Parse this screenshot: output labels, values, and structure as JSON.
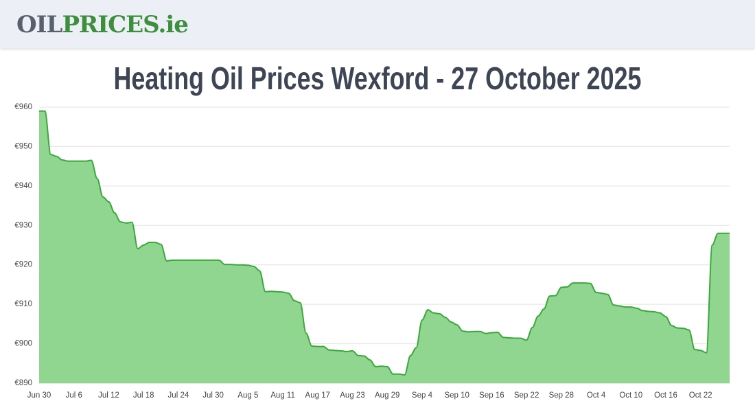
{
  "header": {
    "logo": {
      "part1": "OIL",
      "part2": "PRICES.ie"
    }
  },
  "chart_data": {
    "type": "area",
    "title": "Heating Oil Prices Wexford - 27 October 2025",
    "categories": [
      "Jun 30",
      null,
      null,
      null,
      null,
      null,
      "Jul 6",
      null,
      null,
      null,
      null,
      null,
      "Jul 12",
      null,
      null,
      null,
      null,
      null,
      "Jul 18",
      null,
      null,
      null,
      null,
      null,
      "Jul 24",
      null,
      null,
      null,
      null,
      null,
      "Jul 30",
      null,
      null,
      null,
      null,
      null,
      "Aug 5",
      null,
      null,
      null,
      null,
      null,
      "Aug 11",
      null,
      null,
      null,
      null,
      null,
      "Aug 17",
      null,
      null,
      null,
      null,
      null,
      "Aug 23",
      null,
      null,
      null,
      null,
      null,
      "Aug 29",
      null,
      null,
      null,
      null,
      null,
      "Sep 4",
      null,
      null,
      null,
      null,
      null,
      "Sep 10",
      null,
      null,
      null,
      null,
      null,
      "Sep 16",
      null,
      null,
      null,
      null,
      null,
      "Sep 22",
      null,
      null,
      null,
      null,
      null,
      "Sep 28",
      null,
      null,
      null,
      null,
      null,
      "Oct 4",
      null,
      null,
      null,
      null,
      null,
      "Oct 10",
      null,
      null,
      null,
      null,
      null,
      "Oct 16",
      null,
      null,
      null,
      null,
      null,
      "Oct 22",
      null,
      null,
      null,
      null,
      null
    ],
    "series": [
      {
        "color": "#3aa83a",
        "fill": "#90d590",
        "values": [
          959,
          959,
          948,
          947.5,
          946.6,
          946.3,
          946.3,
          946.3,
          946.3,
          946.5,
          941.9,
          937.2,
          936,
          933.2,
          930.9,
          930.6,
          930.8,
          924.1,
          925,
          925.7,
          925.7,
          925.2,
          921,
          921.2,
          921.2,
          921.2,
          921.2,
          921.2,
          921.2,
          921.2,
          921.2,
          921.2,
          920.1,
          920.1,
          920,
          920,
          919.9,
          919.6,
          918.5,
          913.2,
          913.3,
          913.2,
          913.1,
          912.8,
          910.9,
          910.4,
          902.7,
          899.4,
          899.3,
          899.3,
          898.4,
          898.3,
          898.2,
          898,
          898.2,
          897,
          896.9,
          895.9,
          894.2,
          894.3,
          894.2,
          892.3,
          892.3,
          892.1,
          897,
          899,
          906,
          908.6,
          907.8,
          907.6,
          906.7,
          905.5,
          904.8,
          903.2,
          903,
          903.1,
          903.1,
          902.6,
          902.8,
          902.9,
          901.6,
          901.5,
          901.4,
          901.4,
          900.9,
          904.1,
          907,
          908.8,
          912.1,
          912.2,
          914.3,
          914.4,
          915.4,
          915.4,
          915.4,
          915.3,
          913,
          912.8,
          912.5,
          909.8,
          909.6,
          909.3,
          909.3,
          909,
          908.4,
          908.2,
          908.1,
          907.8,
          906.9,
          904.6,
          904,
          903.9,
          903.5,
          898.5,
          898.3,
          897.7,
          925,
          928,
          928,
          928
        ]
      }
    ],
    "ylim": [
      890,
      960
    ],
    "yticks": [
      {
        "value": 890,
        "label": "€890"
      },
      {
        "value": 900,
        "label": "€900"
      },
      {
        "value": 910,
        "label": "€910"
      },
      {
        "value": 920,
        "label": "€920"
      },
      {
        "value": 930,
        "label": "€930"
      },
      {
        "value": 940,
        "label": "€940"
      },
      {
        "value": 950,
        "label": "€950"
      },
      {
        "value": 960,
        "label": "€960"
      }
    ],
    "grid": true
  }
}
